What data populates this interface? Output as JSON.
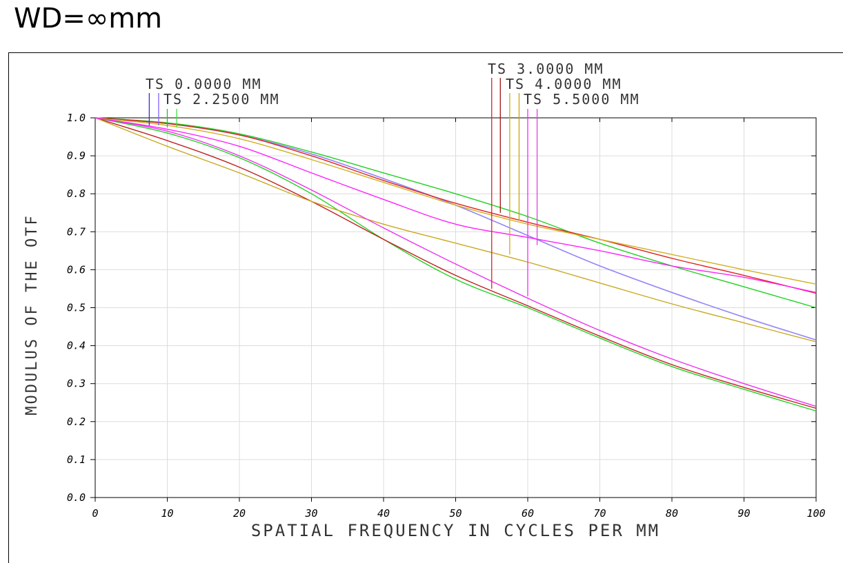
{
  "heading": "WD=∞mm",
  "chart_data": {
    "type": "line",
    "title": "",
    "xlabel": "SPATIAL FREQUENCY IN CYCLES PER MM",
    "ylabel": "MODULUS OF THE OTF",
    "xlim": [
      0,
      100
    ],
    "ylim": [
      0,
      1.0
    ],
    "x_ticks": [
      "0",
      "10",
      "20",
      "30",
      "40",
      "50",
      "60",
      "70",
      "80",
      "90",
      "100"
    ],
    "y_ticks": [
      "0.0",
      "0.1",
      "0.2",
      "0.3",
      "0.4",
      "0.5",
      "0.6",
      "0.7",
      "0.8",
      "0.9",
      "1.0"
    ],
    "grid": true,
    "legend": [
      {
        "label": "TS 0.0000 MM",
        "colors": [
          "#2020d0",
          "#8040ff"
        ]
      },
      {
        "label": "TS 2.2500 MM",
        "colors": [
          "#20c020",
          "#40e040"
        ]
      },
      {
        "label": "TS 3.0000 MM",
        "colors": [
          "#e02020",
          "#a01010"
        ]
      },
      {
        "label": "TS 4.0000 MM",
        "colors": [
          "#d0b000",
          "#c8a800"
        ]
      },
      {
        "label": "TS 5.5000 MM",
        "colors": [
          "#ff20ff",
          "#e040e0"
        ]
      }
    ],
    "series": [
      {
        "name": "TS 0.0000 MM T",
        "color": "#2020c0",
        "x": [
          0,
          10,
          20,
          30,
          40,
          50,
          60,
          70,
          80,
          90,
          100
        ],
        "y": [
          1.0,
          0.985,
          0.955,
          0.905,
          0.84,
          0.77,
          0.69,
          0.61,
          0.54,
          0.475,
          0.415
        ]
      },
      {
        "name": "TS 0.0000 MM S",
        "color": "#9a8aff",
        "x": [
          0,
          10,
          20,
          30,
          40,
          50,
          60,
          70,
          80,
          90,
          100
        ],
        "y": [
          1.0,
          0.985,
          0.955,
          0.905,
          0.84,
          0.77,
          0.69,
          0.61,
          0.54,
          0.475,
          0.415
        ]
      },
      {
        "name": "TS 2.2500 MM T",
        "color": "#20d020",
        "x": [
          0,
          10,
          20,
          30,
          40,
          50,
          60,
          70,
          80,
          90,
          100
        ],
        "y": [
          1.0,
          0.987,
          0.958,
          0.91,
          0.855,
          0.8,
          0.74,
          0.67,
          0.61,
          0.555,
          0.5
        ]
      },
      {
        "name": "TS 2.2500 MM S",
        "color": "#20d020",
        "x": [
          0,
          10,
          20,
          30,
          40,
          50,
          60,
          70,
          80,
          90,
          100
        ],
        "y": [
          1.0,
          0.96,
          0.895,
          0.8,
          0.68,
          0.575,
          0.5,
          0.42,
          0.345,
          0.285,
          0.228
        ]
      },
      {
        "name": "TS 3.0000 MM T",
        "color": "#e02020",
        "x": [
          0,
          10,
          20,
          30,
          40,
          50,
          60,
          70,
          80,
          90,
          100
        ],
        "y": [
          1.0,
          0.985,
          0.955,
          0.9,
          0.835,
          0.775,
          0.725,
          0.68,
          0.63,
          0.585,
          0.538
        ]
      },
      {
        "name": "TS 3.0000 MM S",
        "color": "#c02020",
        "x": [
          0,
          10,
          20,
          30,
          40,
          50,
          60,
          70,
          80,
          90,
          100
        ],
        "y": [
          1.0,
          0.94,
          0.87,
          0.78,
          0.68,
          0.585,
          0.505,
          0.425,
          0.35,
          0.29,
          0.235
        ]
      },
      {
        "name": "TS 4.0000 MM T",
        "color": "#d0b020",
        "x": [
          0,
          10,
          20,
          30,
          40,
          50,
          60,
          70,
          80,
          90,
          100
        ],
        "y": [
          1.0,
          0.98,
          0.945,
          0.89,
          0.83,
          0.77,
          0.72,
          0.68,
          0.64,
          0.6,
          0.562
        ]
      },
      {
        "name": "TS 4.0000 MM S",
        "color": "#c8a820",
        "x": [
          0,
          10,
          20,
          30,
          40,
          50,
          60,
          70,
          80,
          90,
          100
        ],
        "y": [
          1.0,
          0.925,
          0.855,
          0.78,
          0.72,
          0.67,
          0.62,
          0.565,
          0.51,
          0.46,
          0.41
        ]
      },
      {
        "name": "TS 5.5000 MM T",
        "color": "#ff20ff",
        "x": [
          0,
          10,
          20,
          30,
          40,
          50,
          60,
          70,
          80,
          90,
          100
        ],
        "y": [
          1.0,
          0.97,
          0.925,
          0.855,
          0.785,
          0.72,
          0.685,
          0.65,
          0.61,
          0.58,
          0.54
        ]
      },
      {
        "name": "TS 5.5000 MM S",
        "color": "#ee30ee",
        "x": [
          0,
          10,
          20,
          30,
          40,
          50,
          60,
          70,
          80,
          90,
          100
        ],
        "y": [
          1.0,
          0.965,
          0.9,
          0.81,
          0.71,
          0.615,
          0.525,
          0.44,
          0.365,
          0.3,
          0.24
        ]
      }
    ],
    "markers": [
      {
        "x": 7.5,
        "y": 0.98,
        "color": "#3030d0"
      },
      {
        "x": 8.8,
        "y": 0.98,
        "color": "#8060ff"
      },
      {
        "x": 10.0,
        "y": 0.975,
        "color": "#20c020"
      },
      {
        "x": 11.3,
        "y": 0.975,
        "color": "#40e040"
      },
      {
        "x": 55.0,
        "y": 0.55,
        "color": "#e02020"
      },
      {
        "x": 56.2,
        "y": 0.75,
        "color": "#a01010"
      },
      {
        "x": 57.5,
        "y": 0.64,
        "color": "#d0b000"
      },
      {
        "x": 58.8,
        "y": 0.73,
        "color": "#c8a800"
      },
      {
        "x": 60.0,
        "y": 0.53,
        "color": "#ff20ff"
      },
      {
        "x": 61.3,
        "y": 0.665,
        "color": "#e040e0"
      }
    ]
  }
}
